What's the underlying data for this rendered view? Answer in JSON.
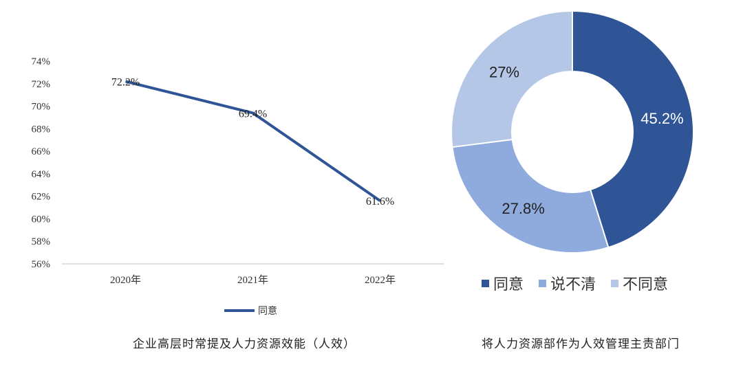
{
  "chart_data": [
    {
      "type": "line",
      "title": "企业高层时常提及人力资源效能（人效）",
      "categories": [
        "2020年",
        "2021年",
        "2022年"
      ],
      "series": [
        {
          "name": "同意",
          "values": [
            72.2,
            69.4,
            61.6
          ],
          "labels": [
            "72.2%",
            "69.4%",
            "61.6%"
          ]
        }
      ],
      "ylim": [
        56,
        74
      ],
      "yticks": [
        "56%",
        "58%",
        "60%",
        "62%",
        "64%",
        "66%",
        "68%",
        "70%",
        "72%",
        "74%"
      ],
      "grid": false,
      "legend_position": "bottom",
      "color": "#2F5597"
    },
    {
      "type": "pie",
      "title": "将人力资源部作为人效管理主责部门",
      "donut": true,
      "slices": [
        {
          "name": "同意",
          "value": 45.2,
          "label": "45.2%",
          "color": "#2F5597"
        },
        {
          "name": "说不清",
          "value": 27.8,
          "label": "27.8%",
          "color": "#8FAADC"
        },
        {
          "name": "不同意",
          "value": 27.0,
          "label": "27%",
          "color": "#B4C7E7"
        }
      ],
      "legend_position": "bottom"
    }
  ]
}
